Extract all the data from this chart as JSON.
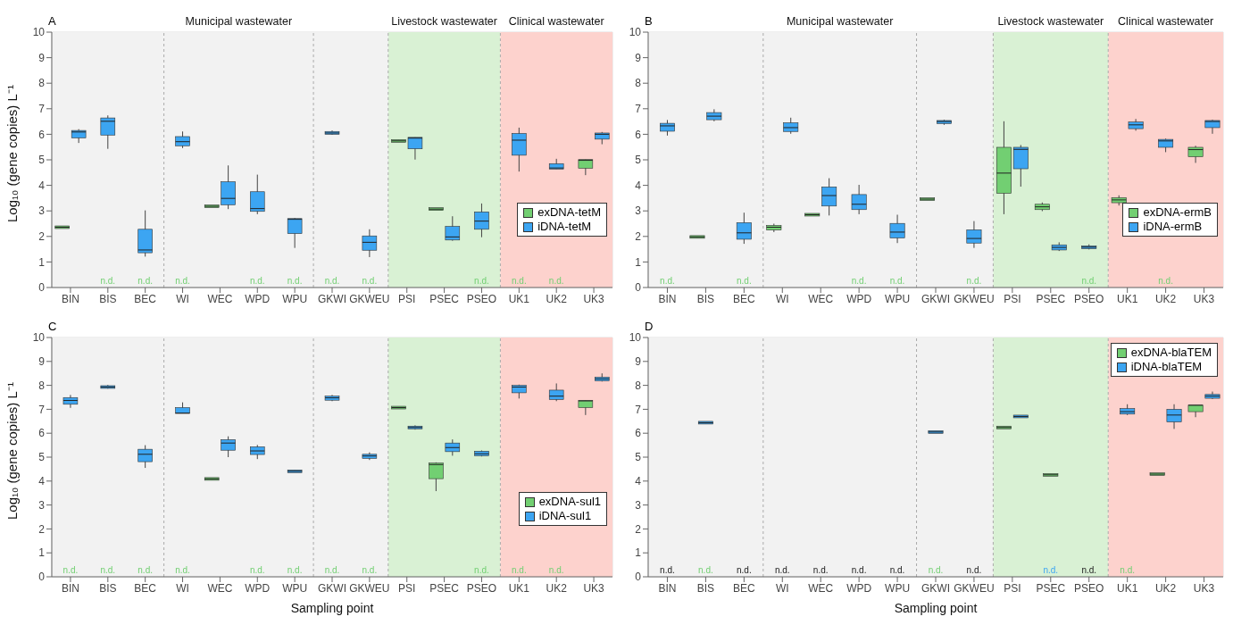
{
  "chart_data": [
    {
      "type": "box",
      "title": "A",
      "ylabel": "Log₁₀ (gene copies) L⁻¹",
      "categories": [
        "BIN",
        "BIS",
        "BEC",
        "WI",
        "WEC",
        "WPD",
        "WPU",
        "GKWI",
        "GKWEU",
        "PSI",
        "PSEC",
        "PSEO",
        "UK1",
        "UK2",
        "UK3"
      ],
      "ylim": [
        0,
        10
      ],
      "yticks": [
        0,
        1,
        2,
        3,
        4,
        5,
        6,
        7,
        8,
        9,
        10
      ],
      "grid": true,
      "legend": "bottom right",
      "series": [
        {
          "name": "exDNA-tetM",
          "color": "#72cf72",
          "boxes": [
            {
              "low": 2.36,
              "q1": 2.36,
              "median": 2.36,
              "q3": 2.36,
              "high": 2.36
            },
            null,
            null,
            null,
            {
              "low": 3.18,
              "q1": 3.18,
              "median": 3.18,
              "q3": 3.18,
              "high": 3.18
            },
            null,
            null,
            null,
            null,
            {
              "low": 5.74,
              "q1": 5.74,
              "median": 5.74,
              "q3": 5.74,
              "high": 5.74
            },
            {
              "low": 3.04,
              "q1": 3.04,
              "median": 3.07,
              "q3": 3.1,
              "high": 3.1
            },
            null,
            null,
            null,
            {
              "low": 4.4,
              "q1": 4.67,
              "median": 4.98,
              "q3": 5.01,
              "high": 5.01
            }
          ]
        },
        {
          "name": "iDNA-tetM",
          "color": "#3ca5f2",
          "boxes": [
            {
              "low": 5.66,
              "q1": 5.86,
              "median": 6.09,
              "q3": 6.15,
              "high": 6.2
            },
            {
              "low": 5.43,
              "q1": 5.97,
              "median": 6.51,
              "q3": 6.64,
              "high": 6.74
            },
            {
              "low": 1.21,
              "q1": 1.36,
              "median": 1.47,
              "q3": 2.28,
              "high": 3.02
            },
            {
              "low": 5.46,
              "q1": 5.55,
              "median": 5.71,
              "q3": 5.91,
              "high": 6.11
            },
            {
              "low": 3.07,
              "q1": 3.24,
              "median": 3.49,
              "q3": 4.14,
              "high": 4.78
            },
            {
              "low": 2.87,
              "q1": 2.98,
              "median": 3.09,
              "q3": 3.75,
              "high": 4.42
            },
            {
              "low": 1.55,
              "q1": 2.11,
              "median": 2.67,
              "q3": 2.7,
              "high": 2.72
            },
            {
              "low": 5.98,
              "q1": 6.0,
              "median": 6.05,
              "q3": 6.11,
              "high": 6.15
            },
            {
              "low": 1.19,
              "q1": 1.46,
              "median": 1.77,
              "q3": 2.02,
              "high": 2.28
            },
            {
              "low": 5.01,
              "q1": 5.43,
              "median": 5.85,
              "q3": 5.88,
              "high": 5.88
            },
            {
              "low": 1.83,
              "q1": 1.86,
              "median": 1.98,
              "q3": 2.39,
              "high": 2.79
            },
            {
              "low": 1.97,
              "q1": 2.28,
              "median": 2.6,
              "q3": 2.96,
              "high": 3.29
            },
            {
              "low": 4.54,
              "q1": 5.18,
              "median": 5.77,
              "q3": 6.03,
              "high": 6.26
            },
            {
              "low": 4.64,
              "q1": 4.64,
              "median": 4.68,
              "q3": 4.85,
              "high": 5.04
            },
            {
              "low": 5.61,
              "q1": 5.81,
              "median": 6.0,
              "q3": 6.05,
              "high": 6.09
            }
          ]
        }
      ],
      "bands": [
        {
          "axis": "x",
          "from": "BIN",
          "to": "BEC",
          "color": "#f2f2f2"
        },
        {
          "axis": "x",
          "from": "WI",
          "to": "WPU",
          "label": "Municipal wastewater",
          "color": "#f2f2f2"
        },
        {
          "axis": "x",
          "from": "GKWI",
          "to": "GKWEU",
          "color": "#f2f2f2"
        },
        {
          "axis": "x",
          "from": "PSI",
          "to": "PSEO",
          "label": "Livestock wastewater",
          "color": "#d9f1d4"
        },
        {
          "axis": "x",
          "from": "UK1",
          "to": "UK3",
          "label": "Clinical wastewater",
          "color": "#fdd2cd"
        }
      ],
      "annotations": [
        {
          "text": "n.d.",
          "x": "BIS",
          "y": 0
        },
        {
          "text": "n.d.",
          "x": "BEC",
          "y": 0
        },
        {
          "text": "n.d.",
          "x": "WI",
          "y": 0
        },
        {
          "text": "n.d.",
          "x": "WPD",
          "y": 0
        },
        {
          "text": "n.d.",
          "x": "WPU",
          "y": 0
        },
        {
          "text": "n.d.",
          "x": "GKWI",
          "y": 0
        },
        {
          "text": "n.d.",
          "x": "GKWEU",
          "y": 0
        },
        {
          "text": "n.d.",
          "x": "PSEO",
          "y": 0
        },
        {
          "text": "n.d.",
          "x": "UK1",
          "y": 0
        },
        {
          "text": "n.d.",
          "x": "UK2",
          "y": 0
        }
      ]
    },
    {
      "type": "box",
      "title": "B",
      "categories": [
        "BIN",
        "BIS",
        "BEC",
        "WI",
        "WEC",
        "WPD",
        "WPU",
        "GKWI",
        "GKWEU",
        "PSI",
        "PSEC",
        "PSEO",
        "UK1",
        "UK2",
        "UK3"
      ],
      "ylim": [
        0,
        10
      ],
      "yticks": [
        0,
        1,
        2,
        3,
        4,
        5,
        6,
        7,
        8,
        9,
        10
      ],
      "grid": true,
      "legend": "bottom right",
      "series": [
        {
          "name": "exDNA-ermB",
          "color": "#72cf72",
          "boxes": [
            null,
            {
              "low": 1.98,
              "q1": 1.98,
              "median": 1.98,
              "q3": 1.98,
              "high": 1.98
            },
            null,
            {
              "low": 2.17,
              "q1": 2.25,
              "median": 2.36,
              "q3": 2.43,
              "high": 2.5
            },
            {
              "low": 2.85,
              "q1": 2.85,
              "median": 2.85,
              "q3": 2.85,
              "high": 2.85
            },
            null,
            null,
            {
              "low": 3.46,
              "q1": 3.46,
              "median": 3.46,
              "q3": 3.46,
              "high": 3.46
            },
            null,
            {
              "low": 2.87,
              "q1": 3.69,
              "median": 4.48,
              "q3": 5.49,
              "high": 6.51
            },
            {
              "low": 2.99,
              "q1": 3.05,
              "median": 3.16,
              "q3": 3.26,
              "high": 3.33
            },
            null,
            {
              "low": 3.21,
              "q1": 3.32,
              "median": 3.43,
              "q3": 3.52,
              "high": 3.61
            },
            null,
            {
              "low": 4.88,
              "q1": 5.12,
              "median": 5.4,
              "q3": 5.49,
              "high": 5.55
            }
          ]
        },
        {
          "name": "iDNA-ermB",
          "color": "#3ca5f2",
          "boxes": [
            {
              "low": 5.95,
              "q1": 6.12,
              "median": 6.33,
              "q3": 6.43,
              "high": 6.56
            },
            {
              "low": 6.51,
              "q1": 6.57,
              "median": 6.71,
              "q3": 6.85,
              "high": 6.98
            },
            {
              "low": 1.71,
              "q1": 1.89,
              "median": 2.14,
              "q3": 2.54,
              "high": 2.93
            },
            {
              "low": 6.02,
              "q1": 6.11,
              "median": 6.26,
              "q3": 6.45,
              "high": 6.65
            },
            {
              "low": 2.82,
              "q1": 3.19,
              "median": 3.6,
              "q3": 3.94,
              "high": 4.28
            },
            {
              "low": 2.87,
              "q1": 3.05,
              "median": 3.26,
              "q3": 3.64,
              "high": 4.02
            },
            {
              "low": 1.74,
              "q1": 1.94,
              "median": 2.17,
              "q3": 2.51,
              "high": 2.85
            },
            {
              "low": 6.37,
              "q1": 6.42,
              "median": 6.5,
              "q3": 6.54,
              "high": 6.57
            },
            {
              "low": 1.55,
              "q1": 1.74,
              "median": 1.92,
              "q3": 2.26,
              "high": 2.6
            },
            {
              "low": 3.95,
              "q1": 4.65,
              "median": 5.41,
              "q3": 5.49,
              "high": 5.58
            },
            {
              "low": 1.43,
              "q1": 1.47,
              "median": 1.57,
              "q3": 1.67,
              "high": 1.77
            },
            {
              "low": 1.49,
              "q1": 1.52,
              "median": 1.58,
              "q3": 1.63,
              "high": 1.69
            },
            {
              "low": 6.14,
              "q1": 6.22,
              "median": 6.37,
              "q3": 6.48,
              "high": 6.6
            },
            {
              "low": 5.3,
              "q1": 5.49,
              "median": 5.74,
              "q3": 5.8,
              "high": 5.83
            },
            {
              "low": 6.02,
              "q1": 6.26,
              "median": 6.5,
              "q3": 6.54,
              "high": 6.57
            }
          ]
        }
      ],
      "bands": [
        {
          "axis": "x",
          "from": "BIN",
          "to": "BEC",
          "color": "#f2f2f2"
        },
        {
          "axis": "x",
          "from": "WI",
          "to": "WPU",
          "label": "Municipal wastewater",
          "color": "#f2f2f2"
        },
        {
          "axis": "x",
          "from": "GKWI",
          "to": "GKWEU",
          "color": "#f2f2f2"
        },
        {
          "axis": "x",
          "from": "PSI",
          "to": "PSEO",
          "label": "Livestock wastewater",
          "color": "#d9f1d4"
        },
        {
          "axis": "x",
          "from": "UK1",
          "to": "UK3",
          "label": "Clinical wastewater",
          "color": "#fdd2cd"
        }
      ],
      "annotations": [
        {
          "text": "n.d.",
          "x": "BIN",
          "y": 0
        },
        {
          "text": "n.d.",
          "x": "BEC",
          "y": 0
        },
        {
          "text": "n.d.",
          "x": "WPD",
          "y": 0
        },
        {
          "text": "n.d.",
          "x": "WPU",
          "y": 0
        },
        {
          "text": "n.d.",
          "x": "GKWEU",
          "y": 0
        },
        {
          "text": "n.d.",
          "x": "PSEO",
          "y": 0
        },
        {
          "text": "n.d.",
          "x": "UK2",
          "y": 0
        }
      ]
    },
    {
      "type": "box",
      "title": "C",
      "ylabel": "Log₁₀ (gene copies) L⁻¹",
      "xlabel": "Sampling point",
      "categories": [
        "BIN",
        "BIS",
        "BEC",
        "WI",
        "WEC",
        "WPD",
        "WPU",
        "GKWI",
        "GKWEU",
        "PSI",
        "PSEC",
        "PSEO",
        "UK1",
        "UK2",
        "UK3"
      ],
      "ylim": [
        0,
        10
      ],
      "yticks": [
        0,
        1,
        2,
        3,
        4,
        5,
        6,
        7,
        8,
        9,
        10
      ],
      "grid": true,
      "legend": "bottom right",
      "series": [
        {
          "name": "exDNA-sul1",
          "color": "#72cf72",
          "boxes": [
            null,
            null,
            null,
            null,
            {
              "low": 4.09,
              "q1": 4.09,
              "median": 4.09,
              "q3": 4.09,
              "high": 4.09
            },
            null,
            null,
            null,
            null,
            {
              "low": 7.07,
              "q1": 7.07,
              "median": 7.07,
              "q3": 7.07,
              "high": 7.07
            },
            {
              "low": 3.58,
              "q1": 4.1,
              "median": 4.69,
              "q3": 4.75,
              "high": 4.78
            },
            null,
            null,
            null,
            {
              "low": 6.76,
              "q1": 7.07,
              "median": 7.35,
              "q3": 7.37,
              "high": 7.37
            }
          ]
        },
        {
          "name": "iDNA-sul1",
          "color": "#3ca5f2",
          "boxes": [
            {
              "low": 7.06,
              "q1": 7.21,
              "median": 7.37,
              "q3": 7.49,
              "high": 7.6
            },
            {
              "low": 7.86,
              "q1": 7.88,
              "median": 7.93,
              "q3": 7.97,
              "high": 8.02
            },
            {
              "low": 4.55,
              "q1": 4.81,
              "median": 5.12,
              "q3": 5.33,
              "high": 5.5
            },
            {
              "low": 6.83,
              "q1": 6.83,
              "median": 6.84,
              "q3": 7.07,
              "high": 7.29
            },
            {
              "low": 5.0,
              "q1": 5.29,
              "median": 5.59,
              "q3": 5.73,
              "high": 5.87
            },
            {
              "low": 4.92,
              "q1": 5.11,
              "median": 5.26,
              "q3": 5.43,
              "high": 5.51
            },
            {
              "low": 4.41,
              "q1": 4.41,
              "median": 4.41,
              "q3": 4.41,
              "high": 4.41
            },
            {
              "low": 7.34,
              "q1": 7.38,
              "median": 7.48,
              "q3": 7.55,
              "high": 7.6
            },
            {
              "low": 4.88,
              "q1": 4.95,
              "median": 5.05,
              "q3": 5.12,
              "high": 5.2
            },
            {
              "low": 6.15,
              "q1": 6.19,
              "median": 6.24,
              "q3": 6.28,
              "high": 6.33
            },
            {
              "low": 5.06,
              "q1": 5.23,
              "median": 5.4,
              "q3": 5.59,
              "high": 5.74
            },
            {
              "low": 5.03,
              "q1": 5.06,
              "median": 5.14,
              "q3": 5.25,
              "high": 5.28
            },
            {
              "low": 7.45,
              "q1": 7.69,
              "median": 7.93,
              "q3": 8.0,
              "high": 8.03
            },
            {
              "low": 7.34,
              "q1": 7.41,
              "median": 7.55,
              "q3": 7.8,
              "high": 8.08
            },
            {
              "low": 8.16,
              "q1": 8.19,
              "median": 8.27,
              "q3": 8.34,
              "high": 8.5
            }
          ]
        }
      ],
      "bands": [
        {
          "axis": "x",
          "from": "BIN",
          "to": "BEC",
          "color": "#f2f2f2"
        },
        {
          "axis": "x",
          "from": "WI",
          "to": "WPU",
          "color": "#f2f2f2"
        },
        {
          "axis": "x",
          "from": "GKWI",
          "to": "GKWEU",
          "color": "#f2f2f2"
        },
        {
          "axis": "x",
          "from": "PSI",
          "to": "PSEO",
          "color": "#d9f1d4"
        },
        {
          "axis": "x",
          "from": "UK1",
          "to": "UK3",
          "color": "#fdd2cd"
        }
      ],
      "annotations": [
        {
          "text": "n.d.",
          "x": "BIN",
          "y": 0
        },
        {
          "text": "n.d.",
          "x": "BIS",
          "y": 0
        },
        {
          "text": "n.d.",
          "x": "BEC",
          "y": 0
        },
        {
          "text": "n.d.",
          "x": "WI",
          "y": 0
        },
        {
          "text": "n.d.",
          "x": "WPD",
          "y": 0
        },
        {
          "text": "n.d.",
          "x": "WPU",
          "y": 0
        },
        {
          "text": "n.d.",
          "x": "GKWI",
          "y": 0
        },
        {
          "text": "n.d.",
          "x": "GKWEU",
          "y": 0
        },
        {
          "text": "n.d.",
          "x": "PSEO",
          "y": 0
        },
        {
          "text": "n.d.",
          "x": "UK1",
          "y": 0
        },
        {
          "text": "n.d.",
          "x": "UK2",
          "y": 0
        }
      ]
    },
    {
      "type": "box",
      "title": "D",
      "xlabel": "Sampling point",
      "categories": [
        "BIN",
        "BIS",
        "BEC",
        "WI",
        "WEC",
        "WPD",
        "WPU",
        "GKWI",
        "GKWEU",
        "PSI",
        "PSEC",
        "PSEO",
        "UK1",
        "UK2",
        "UK3"
      ],
      "ylim": [
        0,
        10
      ],
      "yticks": [
        0,
        1,
        2,
        3,
        4,
        5,
        6,
        7,
        8,
        9,
        10
      ],
      "grid": true,
      "legend": "top right",
      "series": [
        {
          "name": "exDNA-blaTEM",
          "color": "#72cf72",
          "boxes": [
            null,
            null,
            null,
            null,
            null,
            null,
            null,
            null,
            null,
            {
              "low": 6.24,
              "q1": 6.24,
              "median": 6.24,
              "q3": 6.24,
              "high": 6.24
            },
            {
              "low": 4.26,
              "q1": 4.26,
              "median": 4.26,
              "q3": 4.26,
              "high": 4.26
            },
            null,
            null,
            {
              "low": 4.29,
              "q1": 4.29,
              "median": 4.29,
              "q3": 4.29,
              "high": 4.29
            },
            {
              "low": 6.67,
              "q1": 6.9,
              "median": 7.17,
              "q3": 7.17,
              "high": 7.17
            }
          ]
        },
        {
          "name": "iDNA-blaTEM",
          "color": "#3ca5f2",
          "boxes": [
            null,
            {
              "low": 6.44,
              "q1": 6.44,
              "median": 6.44,
              "q3": 6.44,
              "high": 6.44
            },
            null,
            null,
            null,
            null,
            null,
            {
              "low": 6.05,
              "q1": 6.05,
              "median": 6.05,
              "q3": 6.05,
              "high": 6.05
            },
            null,
            {
              "low": 6.7,
              "q1": 6.7,
              "median": 6.7,
              "q3": 6.7,
              "high": 6.7
            },
            null,
            null,
            {
              "low": 6.76,
              "q1": 6.8,
              "median": 6.9,
              "q3": 7.03,
              "high": 7.21
            },
            {
              "low": 6.18,
              "q1": 6.47,
              "median": 6.76,
              "q3": 7.0,
              "high": 7.21
            },
            {
              "low": 7.43,
              "q1": 7.46,
              "median": 7.55,
              "q3": 7.62,
              "high": 7.74
            }
          ]
        }
      ],
      "bands": [
        {
          "axis": "x",
          "from": "BIN",
          "to": "BEC",
          "color": "#f2f2f2"
        },
        {
          "axis": "x",
          "from": "WI",
          "to": "WPU",
          "color": "#f2f2f2"
        },
        {
          "axis": "x",
          "from": "GKWI",
          "to": "GKWEU",
          "color": "#f2f2f2"
        },
        {
          "axis": "x",
          "from": "PSI",
          "to": "PSEO",
          "color": "#d9f1d4"
        },
        {
          "axis": "x",
          "from": "UK1",
          "to": "UK3",
          "color": "#fdd2cd"
        }
      ],
      "annotations": [
        {
          "text": "n.d.",
          "x": "BIN",
          "y": 0
        },
        {
          "text": "n.d.",
          "x": "BIS",
          "y": 0
        },
        {
          "text": "n.d.",
          "x": "BEC",
          "y": 0
        },
        {
          "text": "n.d.",
          "x": "WI",
          "y": 0
        },
        {
          "text": "n.d.",
          "x": "WEC",
          "y": 0
        },
        {
          "text": "n.d.",
          "x": "WPD",
          "y": 0
        },
        {
          "text": "n.d.",
          "x": "WPU",
          "y": 0
        },
        {
          "text": "n.d.",
          "x": "GKWI",
          "y": 0
        },
        {
          "text": "n.d.",
          "x": "GKWEU",
          "y": 0
        },
        {
          "text": "n.d.",
          "x": "PSEC",
          "y": 0
        },
        {
          "text": "n.d.",
          "x": "PSEO",
          "y": 0
        },
        {
          "text": "n.d.",
          "x": "UK1",
          "y": 0
        }
      ]
    }
  ]
}
